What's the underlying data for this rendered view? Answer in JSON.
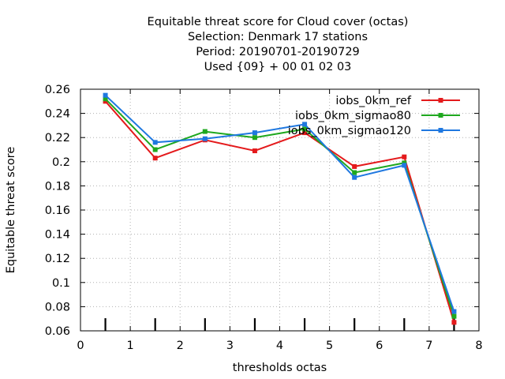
{
  "chart_data": {
    "type": "line",
    "title_lines": [
      "Equitable threat score  for Cloud cover (octas)",
      "Selection: Denmark      17 stations",
      "Period: 20190701-20190729",
      "Used {09} + 00 01 02 03"
    ],
    "xlabel": "thresholds octas",
    "ylabel": "Equitable threat score",
    "xlim": [
      0,
      8
    ],
    "ylim": [
      0.06,
      0.26
    ],
    "xticks": [
      "0",
      "1",
      "2",
      "3",
      "4",
      "5",
      "6",
      "7",
      "8"
    ],
    "yticks": [
      "0.06",
      "0.08",
      "0.1",
      "0.12",
      "0.14",
      "0.16",
      "0.18",
      "0.2",
      "0.22",
      "0.24",
      "0.26"
    ],
    "grid": true,
    "legend_position": "top-right",
    "x": [
      0.5,
      1.5,
      2.5,
      3.5,
      4.5,
      5.5,
      6.5,
      7.5
    ],
    "series": [
      {
        "name": "iobs_0km_ref",
        "color": "#e41a1c",
        "values": [
          0.25,
          0.203,
          0.218,
          0.209,
          0.224,
          0.196,
          0.204,
          0.067
        ]
      },
      {
        "name": "iobs_0km_sigmao80",
        "color": "#1fa81f",
        "values": [
          0.252,
          0.21,
          0.225,
          0.22,
          0.227,
          0.191,
          0.199,
          0.072
        ]
      },
      {
        "name": "iobs_0km_sigmao120",
        "color": "#1f78e0",
        "values": [
          0.255,
          0.216,
          0.219,
          0.224,
          0.231,
          0.187,
          0.197,
          0.076
        ]
      }
    ]
  }
}
